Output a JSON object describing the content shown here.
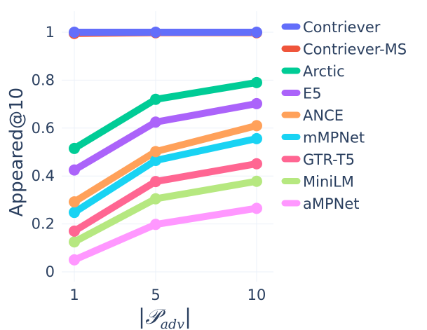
{
  "chart_data": {
    "type": "line",
    "title": "",
    "x": [
      1,
      5,
      10
    ],
    "x_tick_labels": [
      "1",
      "5",
      "10"
    ],
    "xlabel": "|P_adv|",
    "xlabel_parts": {
      "bar_left": "|",
      "symbol": "𝒫",
      "subscript": "adv",
      "bar_right": "|"
    },
    "ylabel": "Appeared@10",
    "ylim": [
      0,
      1.05
    ],
    "y_ticks": [
      0,
      0.2,
      0.4,
      0.6,
      0.8,
      1
    ],
    "y_tick_labels": [
      "0",
      "0.2",
      "0.4",
      "0.6",
      "0.8",
      "1"
    ],
    "grid": true,
    "legend_position": "right",
    "series": [
      {
        "name": "Contriever",
        "color": "#636efa",
        "values": [
          1.0,
          1.0,
          1.0
        ]
      },
      {
        "name": "Contriever-MS",
        "color": "#ef553b",
        "values": [
          0.995,
          0.998,
          0.998
        ]
      },
      {
        "name": "Arctic",
        "color": "#00cc96",
        "values": [
          0.515,
          0.72,
          0.79
        ]
      },
      {
        "name": "E5",
        "color": "#ab63fa",
        "values": [
          0.425,
          0.625,
          0.702
        ]
      },
      {
        "name": "ANCE",
        "color": "#ffa15a",
        "values": [
          0.292,
          0.502,
          0.61
        ]
      },
      {
        "name": "mMPNet",
        "color": "#19d3f3",
        "values": [
          0.248,
          0.465,
          0.556
        ]
      },
      {
        "name": "GTR-T5",
        "color": "#ff6692",
        "values": [
          0.17,
          0.377,
          0.451
        ]
      },
      {
        "name": "MiniLM",
        "color": "#b6e880",
        "values": [
          0.125,
          0.305,
          0.378
        ]
      },
      {
        "name": "aMPNet",
        "color": "#ff97ff",
        "values": [
          0.05,
          0.198,
          0.265
        ]
      }
    ]
  }
}
